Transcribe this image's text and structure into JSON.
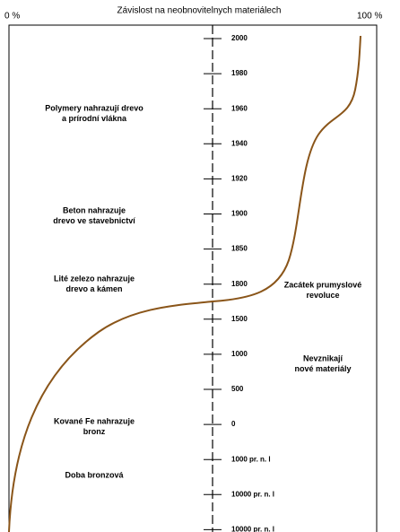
{
  "title": "Závislost na neobnovitelnych materiálech",
  "axis": {
    "left": "0 %",
    "right": "100 %"
  },
  "timeline": [
    "2000",
    "1980",
    "1960",
    "1940",
    "1920",
    "1900",
    "1850",
    "1800",
    "1500",
    "1000",
    "500",
    "0",
    "1000 pr. n. l",
    "10000 pr. n. l",
    "10000 pr. n. l"
  ],
  "annotations": [
    {
      "lines": [
        "Polymery nahrazují drevo",
        "a prírodní vlákna"
      ]
    },
    {
      "lines": [
        "Beton nahrazuje",
        "drevo ve stavebnictví"
      ]
    },
    {
      "lines": [
        "Lité zelezo nahrazuje",
        "drevo a kámen"
      ]
    },
    {
      "lines": [
        "Kované Fe nahrazuje",
        "bronz"
      ]
    },
    {
      "lines": [
        "Doba bronzová"
      ]
    },
    {
      "lines": [
        "Zacátek prumyslové",
        "revoluce"
      ]
    },
    {
      "lines": [
        "Nevznikají",
        "nové materiály"
      ]
    }
  ]
}
